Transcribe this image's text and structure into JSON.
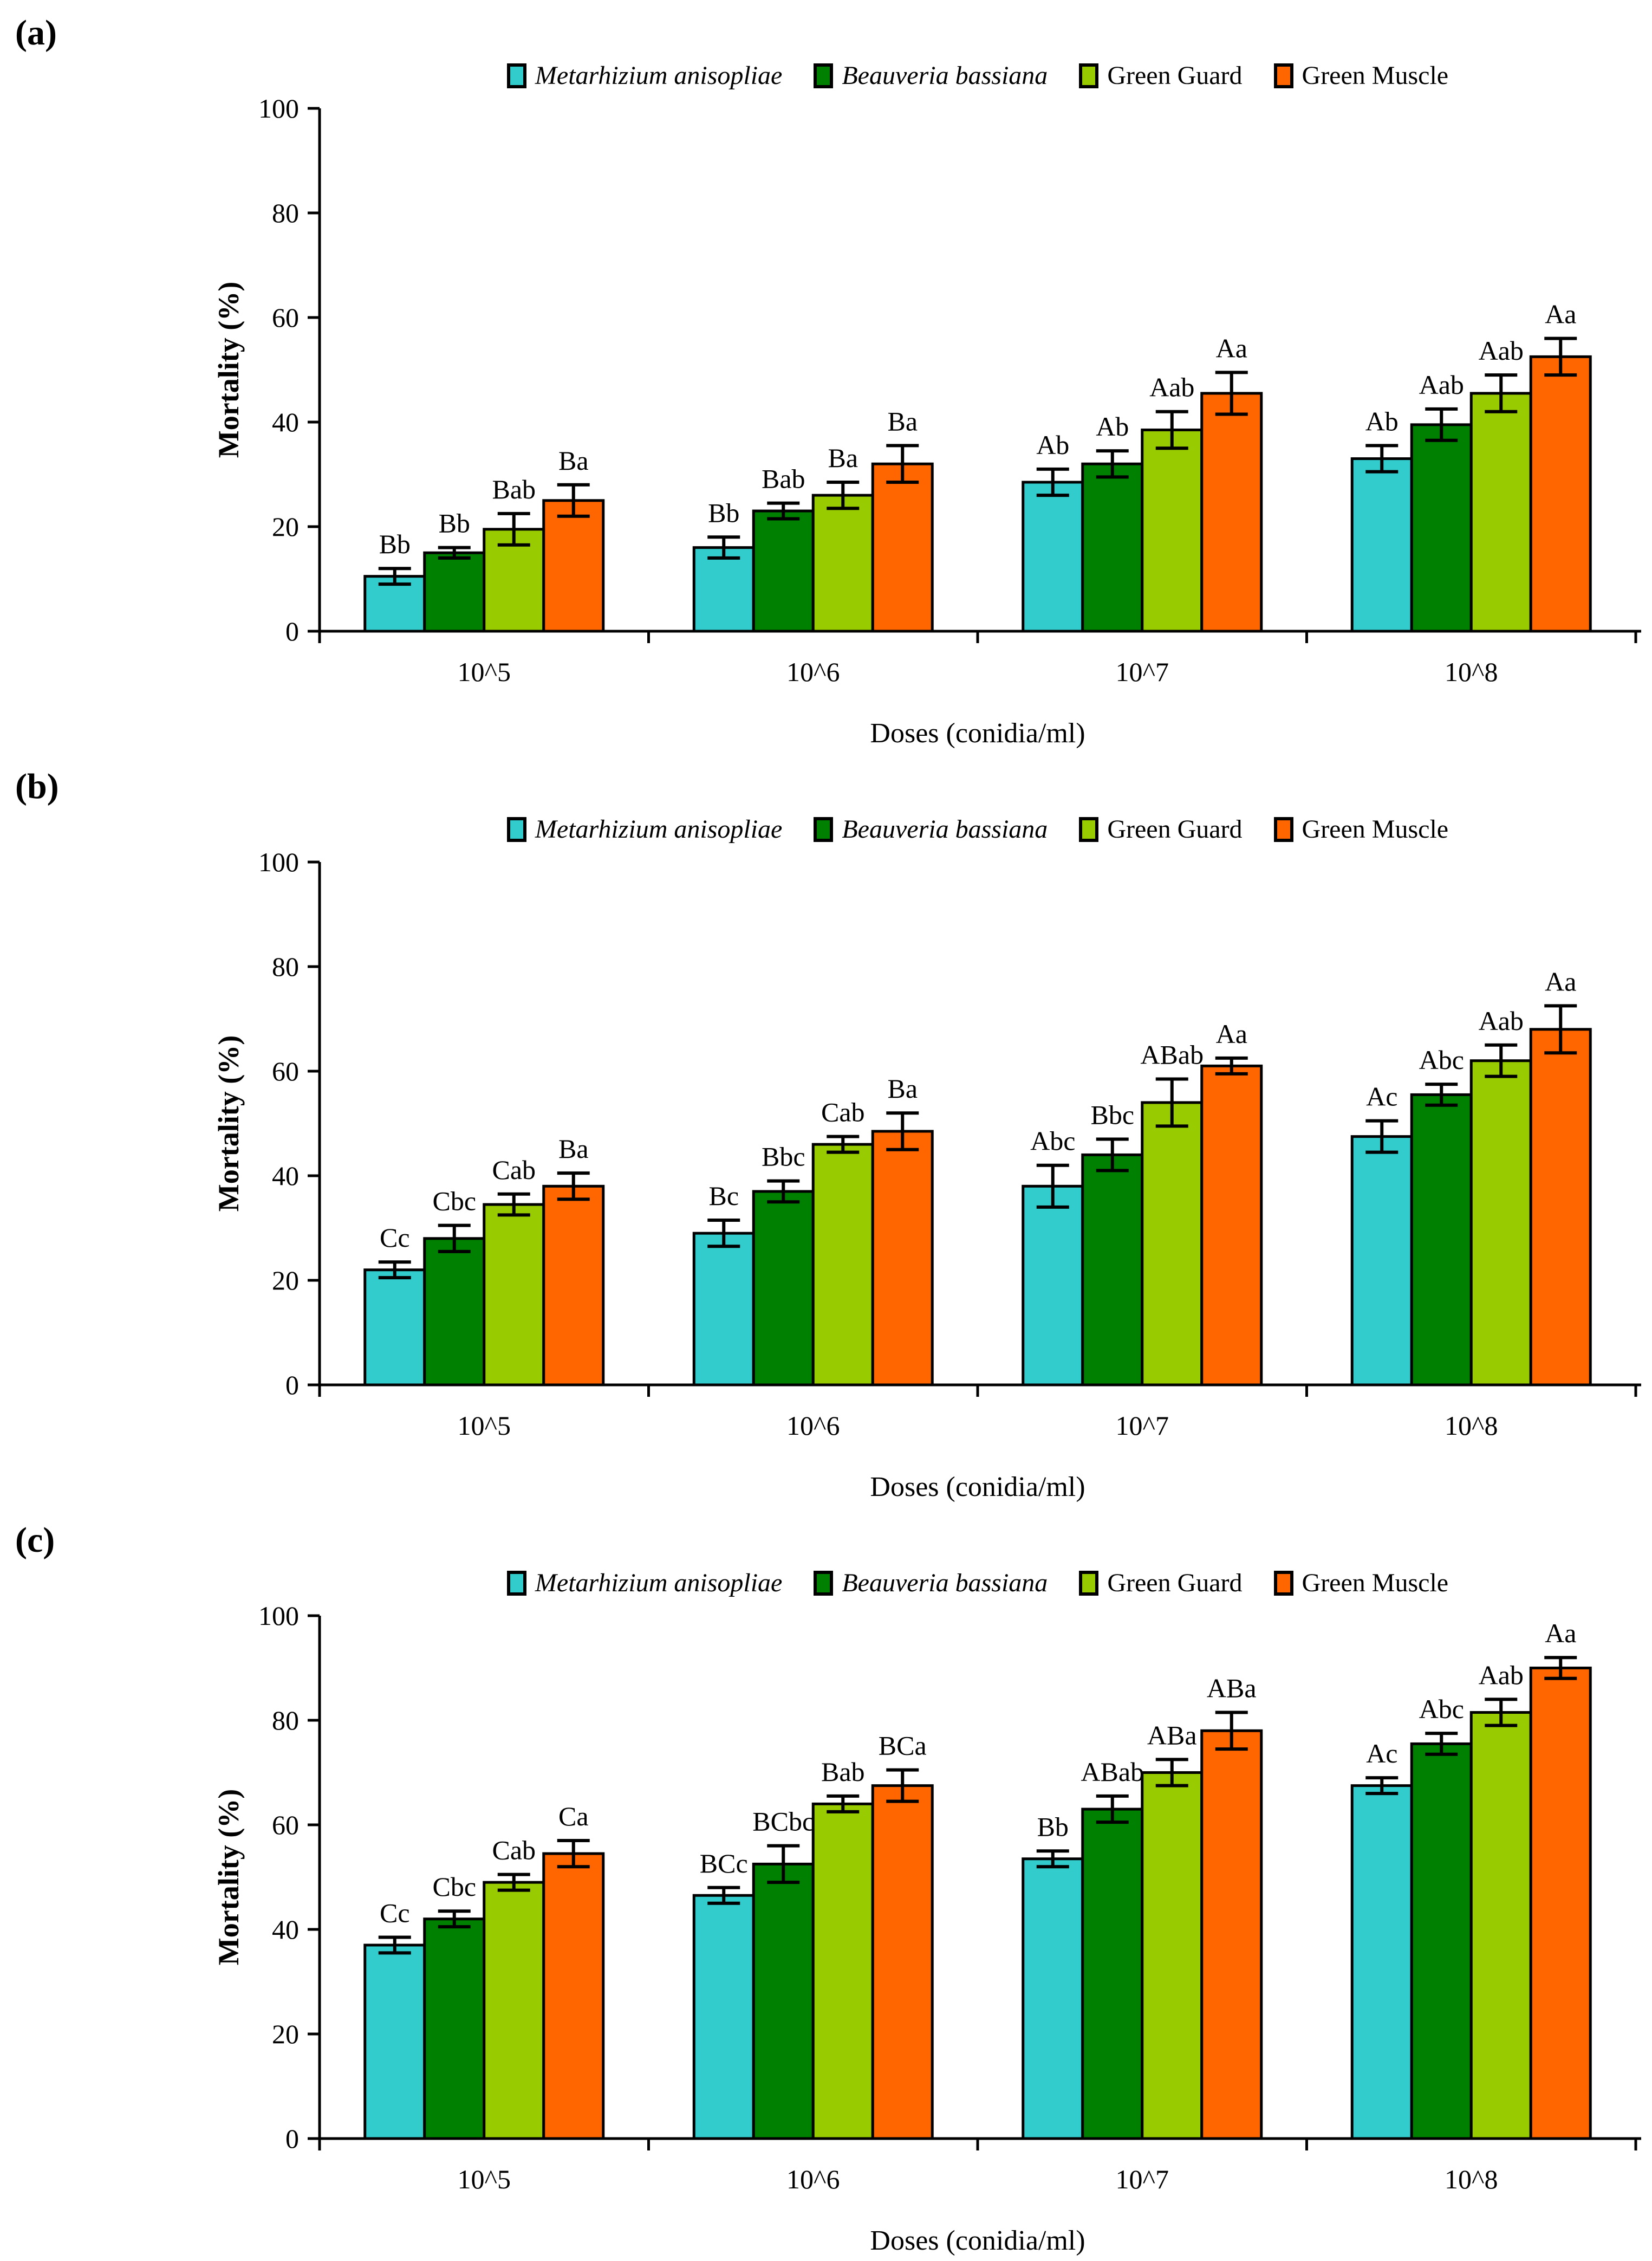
{
  "figure_background": "#FFFFFF",
  "axis_color": "#000000",
  "chart_data": [
    {
      "type": "bar",
      "panel_label": "(a)",
      "title": "",
      "xlabel": "Doses (conidia/ml)",
      "ylabel": "Mortality (%)",
      "ylim": [
        0,
        100
      ],
      "y_ticks": [
        0,
        20,
        40,
        60,
        80,
        100
      ],
      "grid": "off",
      "legend_position": "top-center",
      "categories": [
        "10^5",
        "10^6",
        "10^7",
        "10^8"
      ],
      "series": [
        {
          "name": "Metarhizium anisopliae",
          "italic": true,
          "color": "#33CCCC",
          "values": [
            10.5,
            16,
            28.5,
            33
          ],
          "errors": [
            1.5,
            2,
            2.5,
            2.5
          ],
          "letters": [
            "Bb",
            "Bb",
            "Ab",
            "Ab"
          ]
        },
        {
          "name": "Beauveria bassiana",
          "italic": true,
          "color": "#008000",
          "values": [
            15,
            23,
            32,
            39.5
          ],
          "errors": [
            1,
            1.5,
            2.5,
            3
          ],
          "letters": [
            "Bb",
            "Bab",
            "Ab",
            "Aab"
          ]
        },
        {
          "name": "Green Guard",
          "italic": false,
          "color": "#99CC00",
          "values": [
            19.5,
            26,
            38.5,
            45.5
          ],
          "errors": [
            3,
            2.5,
            3.5,
            3.5
          ],
          "letters": [
            "Bab",
            "Ba",
            "Aab",
            "Aab"
          ]
        },
        {
          "name": "Green Muscle",
          "italic": false,
          "color": "#FF6600",
          "values": [
            25,
            32,
            45.5,
            52.5
          ],
          "errors": [
            3,
            3.5,
            4,
            3.5
          ],
          "letters": [
            "Ba",
            "Ba",
            "Aa",
            "Aa"
          ]
        }
      ]
    },
    {
      "type": "bar",
      "panel_label": "(b)",
      "title": "",
      "xlabel": "Doses (conidia/ml)",
      "ylabel": "Mortality (%)",
      "ylim": [
        0,
        100
      ],
      "y_ticks": [
        0,
        20,
        40,
        60,
        80,
        100
      ],
      "grid": "off",
      "legend_position": "top-center",
      "categories": [
        "10^5",
        "10^6",
        "10^7",
        "10^8"
      ],
      "series": [
        {
          "name": "Metarhizium anisopliae",
          "italic": true,
          "color": "#33CCCC",
          "values": [
            22,
            29,
            38,
            47.5
          ],
          "errors": [
            1.5,
            2.5,
            4,
            3
          ],
          "letters": [
            "Cc",
            "Bc",
            "Abc",
            "Ac"
          ]
        },
        {
          "name": "Beauveria bassiana",
          "italic": true,
          "color": "#008000",
          "values": [
            28,
            37,
            44,
            55.5
          ],
          "errors": [
            2.5,
            2,
            3,
            2
          ],
          "letters": [
            "Cbc",
            "Bbc",
            "Bbc",
            "Abc"
          ]
        },
        {
          "name": "Green Guard",
          "italic": false,
          "color": "#99CC00",
          "values": [
            34.5,
            46,
            54,
            62
          ],
          "errors": [
            2,
            1.5,
            4.5,
            3
          ],
          "letters": [
            "Cab",
            "Cab",
            "ABab",
            "Aab"
          ]
        },
        {
          "name": "Green Muscle",
          "italic": false,
          "color": "#FF6600",
          "values": [
            38,
            48.5,
            61,
            68
          ],
          "errors": [
            2.5,
            3.5,
            1.5,
            4.5
          ],
          "letters": [
            "Ba",
            "Ba",
            "Aa",
            "Aa"
          ]
        }
      ]
    },
    {
      "type": "bar",
      "panel_label": "(c)",
      "title": "",
      "xlabel": "Doses (conidia/ml)",
      "ylabel": "Mortality (%)",
      "ylim": [
        0,
        100
      ],
      "y_ticks": [
        0,
        20,
        40,
        60,
        80,
        100
      ],
      "grid": "off",
      "legend_position": "top-center",
      "categories": [
        "10^5",
        "10^6",
        "10^7",
        "10^8"
      ],
      "series": [
        {
          "name": "Metarhizium anisopliae",
          "italic": true,
          "color": "#33CCCC",
          "values": [
            37,
            46.5,
            53.5,
            67.5
          ],
          "errors": [
            1.5,
            1.5,
            1.5,
            1.5
          ],
          "letters": [
            "Cc",
            "BCc",
            "Bb",
            "Ac"
          ]
        },
        {
          "name": "Beauveria bassiana",
          "italic": true,
          "color": "#008000",
          "values": [
            42,
            52.5,
            63,
            75.5
          ],
          "errors": [
            1.5,
            3.5,
            2.5,
            2
          ],
          "letters": [
            "Cbc",
            "BCbc",
            "ABab",
            "Abc"
          ]
        },
        {
          "name": "Green Guard",
          "italic": false,
          "color": "#99CC00",
          "values": [
            49,
            64,
            70,
            81.5
          ],
          "errors": [
            1.5,
            1.5,
            2.5,
            2.5
          ],
          "letters": [
            "Cab",
            "Bab",
            "ABa",
            "Aab"
          ]
        },
        {
          "name": "Green Muscle",
          "italic": false,
          "color": "#FF6600",
          "values": [
            54.5,
            67.5,
            78,
            90
          ],
          "errors": [
            2.5,
            3,
            3.5,
            2
          ],
          "letters": [
            "Ca",
            "BCa",
            "ABa",
            "Aa"
          ]
        }
      ]
    }
  ]
}
